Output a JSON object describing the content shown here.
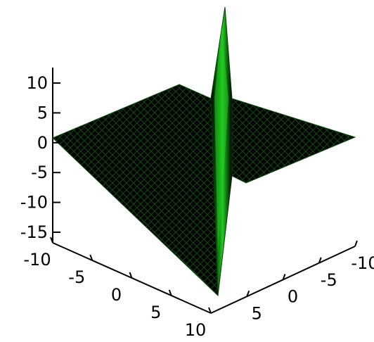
{
  "chart_data": {
    "type": "surface",
    "title": "",
    "xlabel": "",
    "ylabel": "",
    "zlabel": "",
    "z_axis": {
      "range": [
        -17,
        13
      ],
      "ticks": [
        10,
        5,
        0,
        -5,
        -10,
        -15
      ],
      "tick_labels": [
        "10",
        "5",
        "0",
        "-5",
        "-10",
        "-15"
      ]
    },
    "x_axis": {
      "range": [
        -10,
        10
      ],
      "ticks": [
        -10,
        -5,
        0,
        5,
        10
      ],
      "tick_labels": [
        "-10",
        "-5",
        "0",
        "5",
        "10"
      ]
    },
    "y_axis": {
      "range": [
        -10,
        10
      ],
      "ticks": [
        -10,
        -5,
        0,
        5
      ],
      "tick_labels": [
        "-10",
        "-5",
        "0",
        "5"
      ]
    },
    "surface": {
      "base_level": 0,
      "ridge_peak": 13,
      "trough_min": -17,
      "fill_dark": "#000000",
      "fill_highlight": "#22cc22",
      "mesh_color": "#1f7a1f"
    },
    "grid": false,
    "legend": "none"
  }
}
